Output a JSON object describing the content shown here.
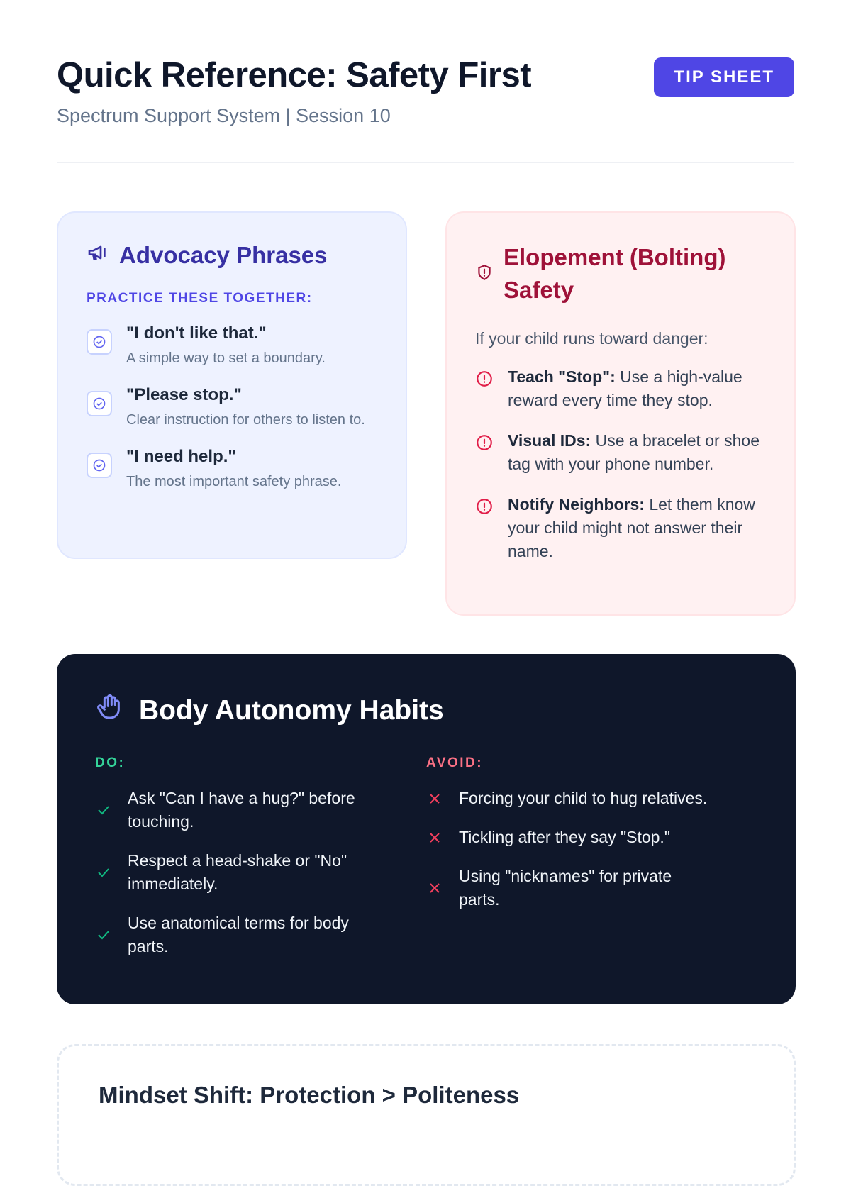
{
  "header": {
    "title": "Quick Reference: Safety First",
    "subtitle": "Spectrum Support System | Session 10",
    "badge": "TIP SHEET"
  },
  "advocacy": {
    "icon": "megaphone-icon",
    "title": "Advocacy Phrases",
    "kicker": "PRACTICE THESE TOGETHER:",
    "items": [
      {
        "phrase": "\"I don't like that.\"",
        "desc": "A simple way to set a boundary."
      },
      {
        "phrase": "\"Please stop.\"",
        "desc": "Clear instruction for others to listen to."
      },
      {
        "phrase": "\"I need help.\"",
        "desc": "The most important safety phrase."
      }
    ]
  },
  "elopement": {
    "icon": "shield-alert-icon",
    "title": "Elopement (Bolting) Safety",
    "intro": "If your child runs toward danger:",
    "items": [
      {
        "label": "Teach \"Stop\":",
        "text": " Use a high-value reward every time they stop."
      },
      {
        "label": "Visual IDs:",
        "text": " Use a bracelet or shoe tag with your phone number."
      },
      {
        "label": "Notify Neighbors:",
        "text": " Let them know your child might not answer their name."
      }
    ]
  },
  "body": {
    "icon": "hand-icon",
    "title": "Body Autonomy Habits",
    "do": {
      "label": "DO:",
      "items": [
        "Ask \"Can I have a hug?\" before touching.",
        "Respect a head-shake or \"No\" immediately.",
        "Use anatomical terms for body parts."
      ]
    },
    "avoid": {
      "label": "AVOID:",
      "items": [
        "Forcing your child to hug relatives.",
        "Tickling after they say \"Stop.\"",
        "Using \"nicknames\" for private parts."
      ]
    }
  },
  "mindset": {
    "title": "Mindset Shift: Protection > Politeness"
  },
  "colors": {
    "accent": "#4f46e5",
    "danger": "#e11d48",
    "success": "#10b981",
    "dark": "#0f172a"
  }
}
